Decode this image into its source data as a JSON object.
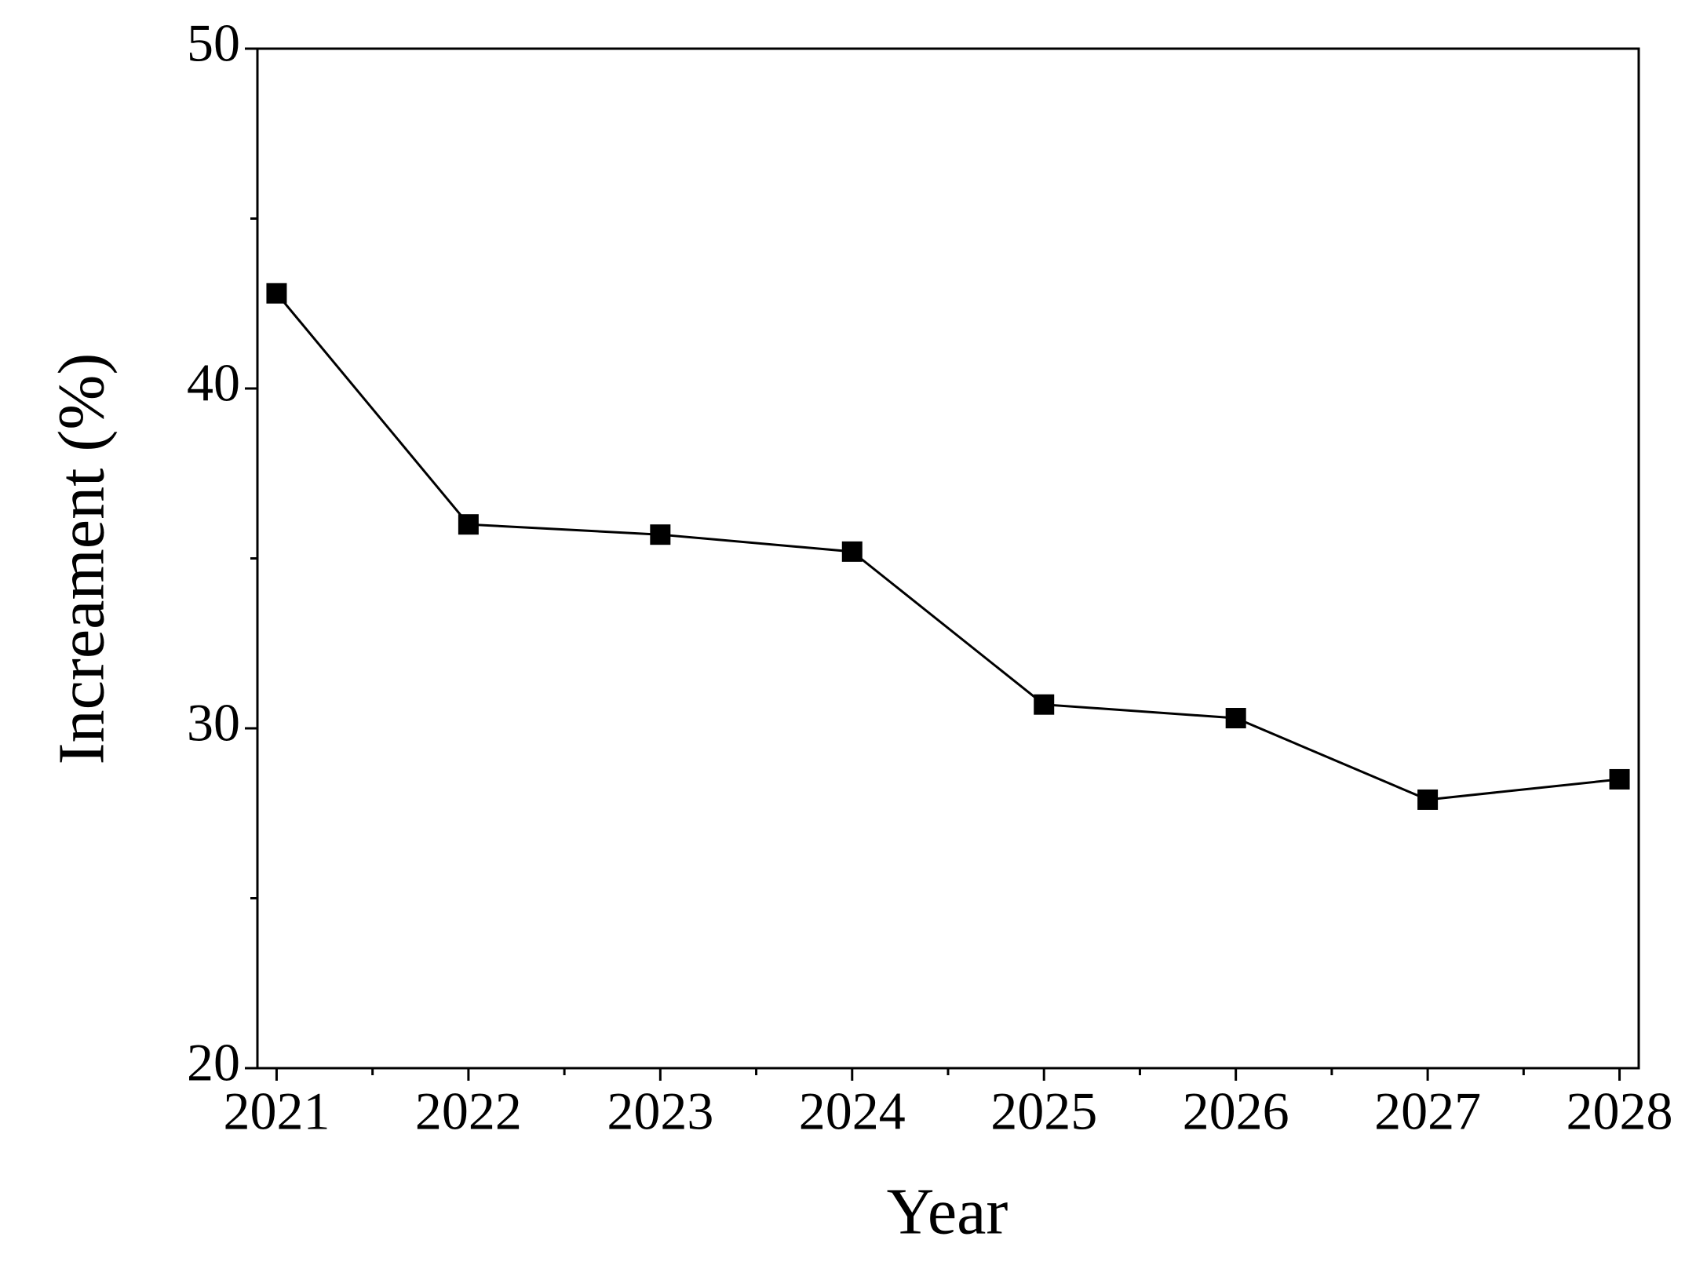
{
  "chart_data": {
    "type": "line",
    "xlabel": "Year",
    "ylabel": "Increament (%)",
    "x": [
      2021,
      2022,
      2023,
      2024,
      2025,
      2026,
      2027,
      2028
    ],
    "series": [
      {
        "color": "#000000",
        "marker": "square",
        "values": [
          42.8,
          36.0,
          35.7,
          35.2,
          30.7,
          30.3,
          27.9,
          28.5
        ]
      }
    ],
    "xlim": [
      2020.9,
      2028.1
    ],
    "xticks": [
      2021,
      2022,
      2023,
      2024,
      2025,
      2026,
      2027,
      2028
    ],
    "ylim": [
      20,
      50
    ],
    "yticks": [
      20,
      30,
      40,
      50
    ],
    "grid": false
  }
}
